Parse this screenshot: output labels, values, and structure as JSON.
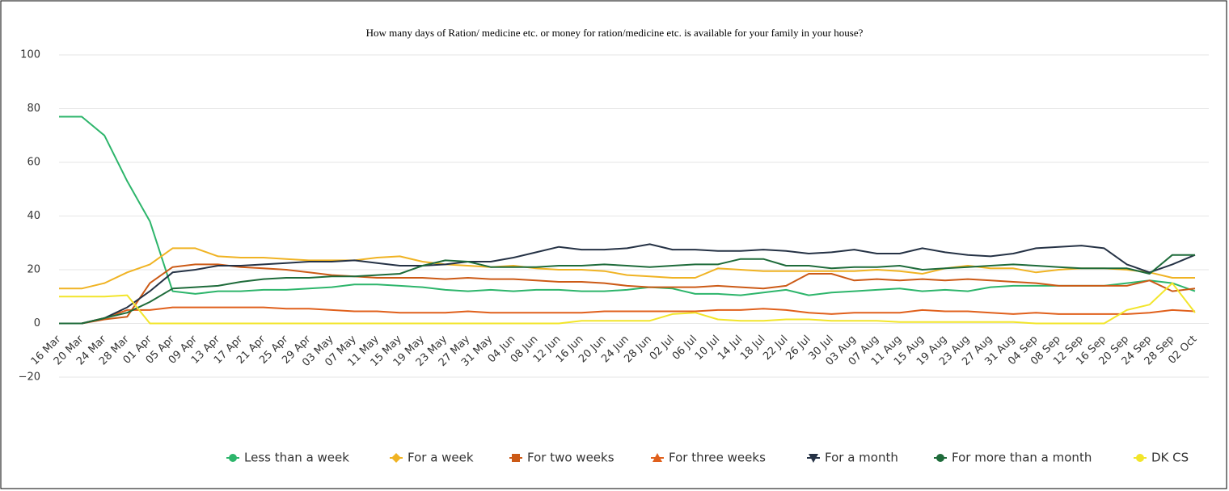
{
  "chart_data": {
    "type": "line",
    "title": "How many days of Ration/ medicine etc. or money for ration/medicine etc. is available for your family in your house?",
    "categories": [
      "16 Mar",
      "20 Mar",
      "24 Mar",
      "28 Mar",
      "01 Apr",
      "05 Apr",
      "09 Apr",
      "13 Apr",
      "17 Apr",
      "21 Apr",
      "25 Apr",
      "29 Apr",
      "03 May",
      "07 May",
      "11 May",
      "15 May",
      "19 May",
      "23 May",
      "27 May",
      "31 May",
      "04 Jun",
      "08 Jun",
      "12 Jun",
      "16 Jun",
      "20 Jun",
      "24 Jun",
      "28 Jun",
      "02 Jul",
      "06 Jul",
      "10 Jul",
      "14 Jul",
      "18 Jul",
      "22 Jul",
      "26 Jul",
      "30 Jul",
      "03 Aug",
      "07 Aug",
      "11 Aug",
      "15 Aug",
      "19 Aug",
      "23 Aug",
      "27 Aug",
      "31 Aug",
      "04 Sep",
      "08 Sep",
      "12 Sep",
      "16 Sep",
      "20 Sep",
      "24 Sep",
      "28 Sep",
      "02 Oct"
    ],
    "series": [
      {
        "name": "Less than a week",
        "color": "#2db56b",
        "marker": "circle",
        "values": [
          77,
          77,
          70,
          53,
          38,
          12,
          11,
          12,
          12,
          12.5,
          12.5,
          13,
          13.5,
          14.5,
          14.5,
          14,
          13.5,
          12.5,
          12,
          12.5,
          12,
          12.5,
          12.5,
          12,
          12,
          12.5,
          13.5,
          13,
          11,
          11,
          10.5,
          11.5,
          12.5,
          10.5,
          11.5,
          12,
          12.5,
          13,
          12,
          12.5,
          12,
          13.5,
          14,
          14,
          14,
          14,
          14,
          15,
          16,
          15,
          12
        ]
      },
      {
        "name": "For a week",
        "color": "#f0b323",
        "marker": "diamond",
        "values": [
          13,
          13,
          15,
          19,
          22,
          28,
          28,
          25,
          24.5,
          24.5,
          24,
          23.5,
          23.5,
          23.5,
          24.5,
          25,
          23,
          22,
          21.5,
          21,
          21.5,
          20.5,
          20,
          20,
          19.5,
          18,
          17.5,
          17,
          17,
          20.5,
          20,
          19.5,
          19.5,
          19.5,
          19.5,
          19.5,
          20,
          19.5,
          18.5,
          20.5,
          21.5,
          20.5,
          20.5,
          19,
          20,
          20.5,
          20.5,
          20,
          19,
          17,
          17
        ]
      },
      {
        "name": "For two weeks",
        "color": "#cc5a16",
        "marker": "square",
        "values": [
          0,
          0,
          1.5,
          2.5,
          15,
          21,
          22,
          22,
          21,
          20.5,
          20,
          19,
          18,
          17.5,
          17,
          17,
          17,
          16.5,
          17,
          16.5,
          16.5,
          16,
          15.5,
          15.5,
          15,
          14,
          13.5,
          13.5,
          13.5,
          14,
          13.5,
          13,
          14,
          18.5,
          18.5,
          16,
          16.5,
          16,
          16.5,
          16,
          16.5,
          16,
          15.5,
          15,
          14,
          14,
          14,
          14,
          16,
          12,
          13
        ]
      },
      {
        "name": "For three weeks",
        "color": "#e0601c",
        "marker": "triangle",
        "values": [
          0,
          0,
          2,
          5,
          5,
          6,
          6,
          6,
          6,
          6,
          5.5,
          5.5,
          5,
          4.5,
          4.5,
          4,
          4,
          4,
          4.5,
          4,
          4,
          4,
          4,
          4,
          4.5,
          4.5,
          4.5,
          4.5,
          4.5,
          5,
          5,
          5.5,
          5,
          4,
          3.5,
          4,
          4,
          4,
          5,
          4.5,
          4.5,
          4,
          3.5,
          4,
          3.5,
          3.5,
          3.5,
          3.5,
          4,
          5,
          4.5
        ]
      },
      {
        "name": "For a month",
        "color": "#253245",
        "marker": "triangle-down",
        "values": [
          0,
          0,
          2,
          6,
          12,
          19,
          20,
          21.5,
          21.5,
          22,
          22.5,
          23,
          23,
          23.5,
          22.5,
          21.5,
          21.5,
          22,
          23,
          23,
          24.5,
          26.5,
          28.5,
          27.5,
          27.5,
          28,
          29.5,
          27.5,
          27.5,
          27,
          27,
          27.5,
          27,
          26,
          26.5,
          27.5,
          26,
          26,
          28,
          26.5,
          25.5,
          25,
          26,
          28,
          28.5,
          29,
          28,
          22,
          19,
          22,
          25.5
        ]
      },
      {
        "name": "For more than a month",
        "color": "#1e6b3a",
        "marker": "circle",
        "values": [
          0,
          0,
          2,
          4,
          8,
          13,
          13.5,
          14,
          15.5,
          16.5,
          17,
          17,
          17.5,
          17.5,
          18,
          18.5,
          21.5,
          23.5,
          23,
          21,
          21,
          21,
          21.5,
          21.5,
          22,
          21.5,
          21,
          21.5,
          22,
          22,
          24,
          24,
          21.5,
          21.5,
          20.5,
          21,
          21,
          21.5,
          20,
          20.5,
          21,
          21.5,
          22,
          21.5,
          21,
          20.5,
          20.5,
          20.5,
          18.5,
          25.5,
          25.5
        ]
      },
      {
        "name": "DK CS",
        "color": "#f2e52a",
        "marker": "circle",
        "values": [
          10,
          10,
          10,
          10.5,
          0,
          0,
          0,
          0,
          0,
          0,
          0,
          0,
          0,
          0,
          0,
          0,
          0,
          0,
          0,
          0,
          0,
          0,
          0,
          1,
          1,
          1,
          1,
          3.5,
          4,
          1.5,
          1,
          1,
          1.5,
          1.5,
          1,
          1,
          1,
          0.5,
          0.5,
          0.5,
          0.5,
          0.5,
          0.5,
          0,
          0,
          0,
          0,
          5,
          7,
          15,
          4
        ]
      }
    ],
    "ylim": [
      -20,
      100
    ],
    "yticks": [
      {
        "value": -20,
        "label": "−20"
      },
      0,
      20,
      40,
      60,
      80,
      100
    ],
    "grid": true
  }
}
